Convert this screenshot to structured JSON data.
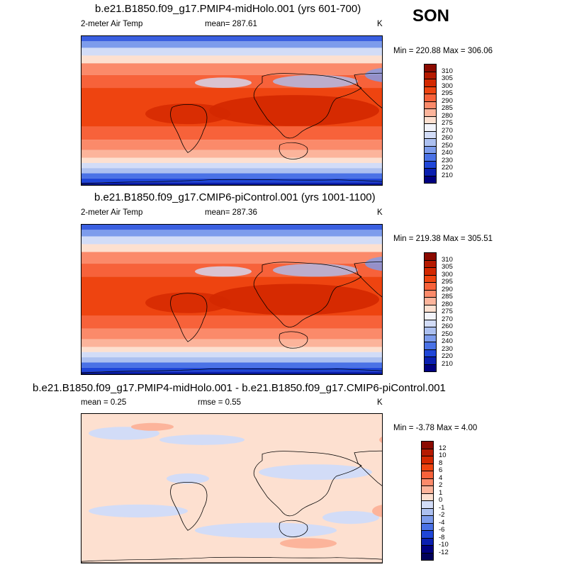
{
  "season": "SON",
  "panels": [
    {
      "title": "b.e21.B1850.f09_g17.PMIP4-midHolo.001 (yrs 601-700)",
      "left_label": "2-meter Air Temp",
      "center_label": "mean= 287.61",
      "right_label": "K",
      "minmax": "Min = 220.88 Max = 306.06",
      "kind": "abs"
    },
    {
      "title": "b.e21.B1850.f09_g17.CMIP6-piControl.001 (yrs 1001-1100)",
      "left_label": "2-meter Air Temp",
      "center_label": "mean= 287.36",
      "right_label": "K",
      "minmax": "Min = 219.38 Max = 305.51",
      "kind": "abs"
    },
    {
      "title": "b.e21.B1850.f09_g17.PMIP4-midHolo.001 - b.e21.B1850.f09_g17.CMIP6-piControl.001",
      "left_label": "mean =   0.25",
      "center_label": "rmse =   0.55",
      "right_label": "K",
      "minmax": "Min =  -3.78 Max =   4.00",
      "kind": "diff"
    }
  ],
  "colorbars": {
    "abs": {
      "labels": [
        "310",
        "305",
        "300",
        "295",
        "290",
        "285",
        "280",
        "275",
        "270",
        "260",
        "250",
        "240",
        "230",
        "220",
        "210"
      ],
      "colors": [
        "#8b0a00",
        "#b51a00",
        "#d32800",
        "#ee4410",
        "#f7623a",
        "#fb8a6a",
        "#fcb49b",
        "#fde0d0",
        "#f2f4fb",
        "#d2dcf7",
        "#acc0f0",
        "#7d9cec",
        "#4a72e6",
        "#1f46d8",
        "#0a1fb0",
        "#000080"
      ]
    },
    "diff": {
      "labels": [
        "12",
        "10",
        "8",
        "6",
        "4",
        "2",
        "1",
        "0",
        "-1",
        "-2",
        "-4",
        "-6",
        "-8",
        "-10",
        "-12"
      ],
      "colors": [
        "#8b0a00",
        "#b51a00",
        "#d32800",
        "#ee4410",
        "#f7623a",
        "#fb8a6a",
        "#fcb49b",
        "#fde0d0",
        "#d2dcf7",
        "#acc0f0",
        "#7d9cec",
        "#4a72e6",
        "#1f46d8",
        "#0a1fb0",
        "#000080",
        "#00005a"
      ]
    }
  }
}
